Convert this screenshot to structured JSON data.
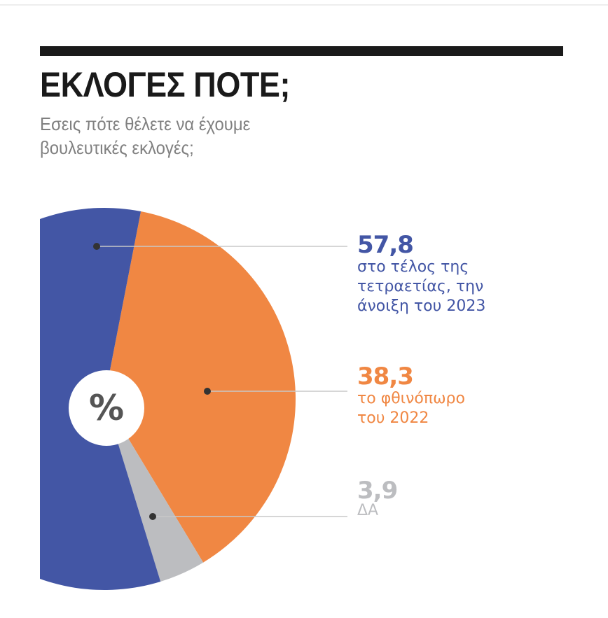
{
  "header": {
    "title": "ΕΚΛΟΓΕΣ ΠΟΤΕ;",
    "subtitle_line1": "Εσεις πότε θέλετε να έχουμε",
    "subtitle_line2": "βουλευτικές εκλογές;"
  },
  "center_label": "%",
  "chart_data": {
    "type": "pie",
    "title": "ΕΚΛΟΓΕΣ ΠΟΤΕ;",
    "unit": "%",
    "slices": [
      {
        "label": "57,8",
        "value": 57.8,
        "desc": [
          "στο τέλος της",
          "τετραετίας, την",
          "άνοιξη του 2023"
        ],
        "color": "#4356a5"
      },
      {
        "label": "38,3",
        "value": 38.3,
        "desc": [
          "το φθινόπωρο",
          "του 2022"
        ],
        "color": "#f08743"
      },
      {
        "label": "3,9",
        "value": 3.9,
        "desc": [
          "ΔΑ"
        ],
        "color": "#bcbdc0"
      }
    ]
  }
}
